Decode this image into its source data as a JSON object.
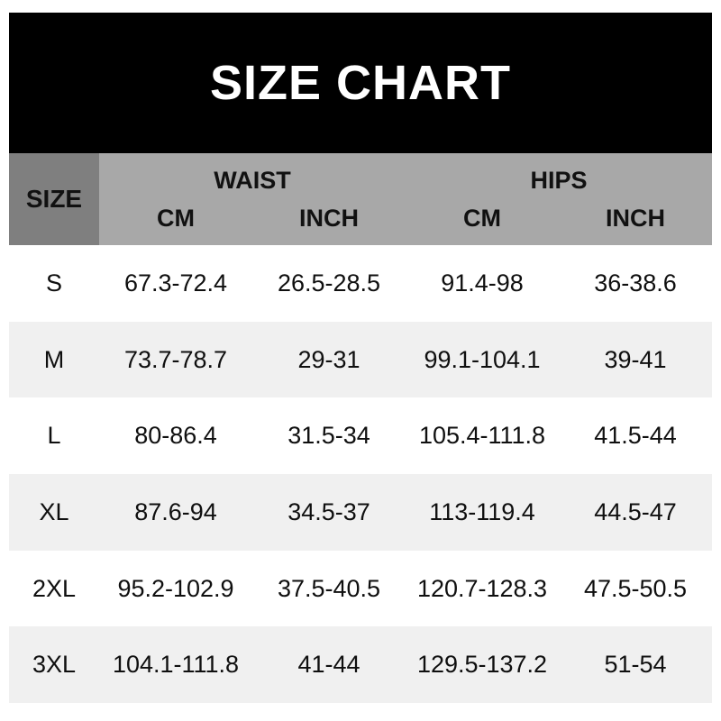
{
  "title": "SIZE CHART",
  "colors": {
    "banner_bg": "#000000",
    "banner_text": "#ffffff",
    "size_header_bg": "#7f7f7f",
    "header_bg": "#a8a8a8",
    "row_bg": "#ffffff",
    "row_alt_bg": "#f0f0f0",
    "text": "#0f0f0f"
  },
  "table": {
    "size_header": "SIZE",
    "groups": [
      {
        "label": "WAIST"
      },
      {
        "label": "HIPS"
      }
    ],
    "sub_headers": [
      "CM",
      "INCH",
      "CM",
      "INCH"
    ],
    "rows": [
      {
        "size": "S",
        "waist_cm": "67.3-72.4",
        "waist_inch": "26.5-28.5",
        "hips_cm": "91.4-98",
        "hips_inch": "36-38.6"
      },
      {
        "size": "M",
        "waist_cm": "73.7-78.7",
        "waist_inch": "29-31",
        "hips_cm": "99.1-104.1",
        "hips_inch": "39-41"
      },
      {
        "size": "L",
        "waist_cm": "80-86.4",
        "waist_inch": "31.5-34",
        "hips_cm": "105.4-111.8",
        "hips_inch": "41.5-44"
      },
      {
        "size": "XL",
        "waist_cm": "87.6-94",
        "waist_inch": "34.5-37",
        "hips_cm": "113-119.4",
        "hips_inch": "44.5-47"
      },
      {
        "size": "2XL",
        "waist_cm": "95.2-102.9",
        "waist_inch": "37.5-40.5",
        "hips_cm": "120.7-128.3",
        "hips_inch": "47.5-50.5"
      },
      {
        "size": "3XL",
        "waist_cm": "104.1-111.8",
        "waist_inch": "41-44",
        "hips_cm": "129.5-137.2",
        "hips_inch": "51-54"
      }
    ]
  }
}
